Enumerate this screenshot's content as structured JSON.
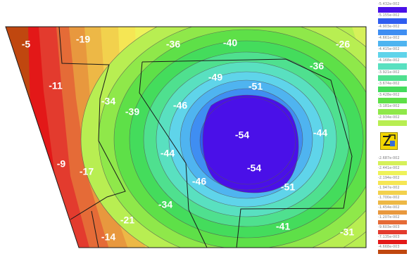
{
  "colors": {
    "background": "#ffffff",
    "outline": "#1a1a1a",
    "isoline": "#555555",
    "label": "#ffffff"
  },
  "contour_labels": [
    "-5",
    "-19",
    "-36",
    "-40",
    "-26",
    "-11",
    "-34",
    "-39",
    "-49",
    "-51",
    "-36",
    "-46",
    "-54",
    "-44",
    "-44",
    "-9",
    "-17",
    "-54",
    "-46",
    "-51",
    "-34",
    "-21",
    "-41",
    "-31",
    "-14"
  ],
  "legend": {
    "entries": [
      {
        "label": "-5.432e-002",
        "color": "#4a10e8"
      },
      {
        "label": "-5.155e-002",
        "color": "#2f5df0"
      },
      {
        "label": "-4.903e-002",
        "color": "#3f8ef2"
      },
      {
        "label": "-4.661e-002",
        "color": "#4fb4f0"
      },
      {
        "label": "-4.415e-002",
        "color": "#5fd4ea"
      },
      {
        "label": "-4.168e-002",
        "color": "#59e0c0"
      },
      {
        "label": "-3.921e-002",
        "color": "#4fe08f"
      },
      {
        "label": "-3.674e-002",
        "color": "#44dc5c"
      },
      {
        "label": "-3.428e-002",
        "color": "#5ee048"
      },
      {
        "label": "-3.181e-002",
        "color": "#8fe84a"
      },
      {
        "label": "-2.934e-002",
        "color": "#b8ee52"
      },
      {
        "label": "-2.687e-002",
        "color": "#d6f05a"
      },
      {
        "label": "-2.441e-002",
        "color": "#eef25a"
      },
      {
        "label": "-2.194e-002",
        "color": "#f5e654"
      },
      {
        "label": "-1.947e-002",
        "color": "#f2d14d"
      },
      {
        "label": "-1.700e-002",
        "color": "#edb846"
      },
      {
        "label": "-1.454e-002",
        "color": "#e8983e"
      },
      {
        "label": "-1.207e-002",
        "color": "#e56b37"
      },
      {
        "label": "-9.603e-003",
        "color": "#e33b2e"
      },
      {
        "label": "-7.135e-003",
        "color": "#e31818"
      },
      {
        "label": "-4.668e-003",
        "color": "#c0470f"
      }
    ]
  },
  "logo": {
    "icon": "fea-software-logo-icon",
    "color": "#f2d600"
  }
}
